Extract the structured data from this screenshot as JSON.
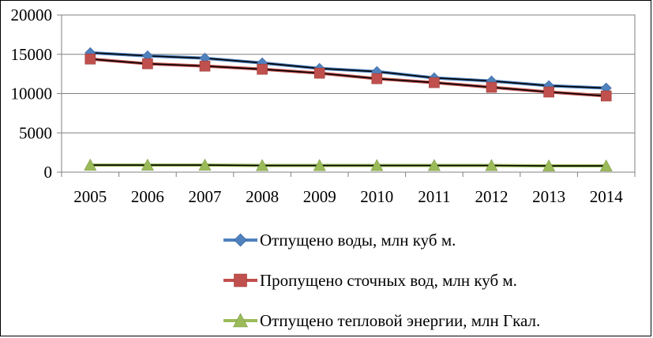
{
  "chart_data": {
    "type": "line",
    "title": "",
    "xlabel": "",
    "ylabel": "",
    "categories": [
      "2005",
      "2006",
      "2007",
      "2008",
      "2009",
      "2010",
      "2011",
      "2012",
      "2013",
      "2014"
    ],
    "ylim": [
      0,
      20000
    ],
    "yticks": [
      0,
      5000,
      10000,
      15000,
      20000
    ],
    "grid": "horizontal",
    "legend_position": "bottom",
    "series": [
      {
        "name": "Отпущено воды, млн куб м.",
        "color": "#4F81BD",
        "marker": "diamond",
        "values": [
          15200,
          14800,
          14500,
          13900,
          13200,
          12800,
          12000,
          11600,
          11000,
          10700
        ]
      },
      {
        "name": "Пропущено сточных вод, млн куб м.",
        "color": "#C0504D",
        "marker": "square",
        "values": [
          14400,
          13800,
          13500,
          13100,
          12600,
          11900,
          11400,
          10800,
          10200,
          9700
        ]
      },
      {
        "name": "Отпущено тепловой энергии, млн Гкал.",
        "color": "#9BBB59",
        "marker": "triangle",
        "values": [
          900,
          900,
          900,
          850,
          850,
          850,
          850,
          850,
          800,
          800
        ]
      }
    ]
  }
}
